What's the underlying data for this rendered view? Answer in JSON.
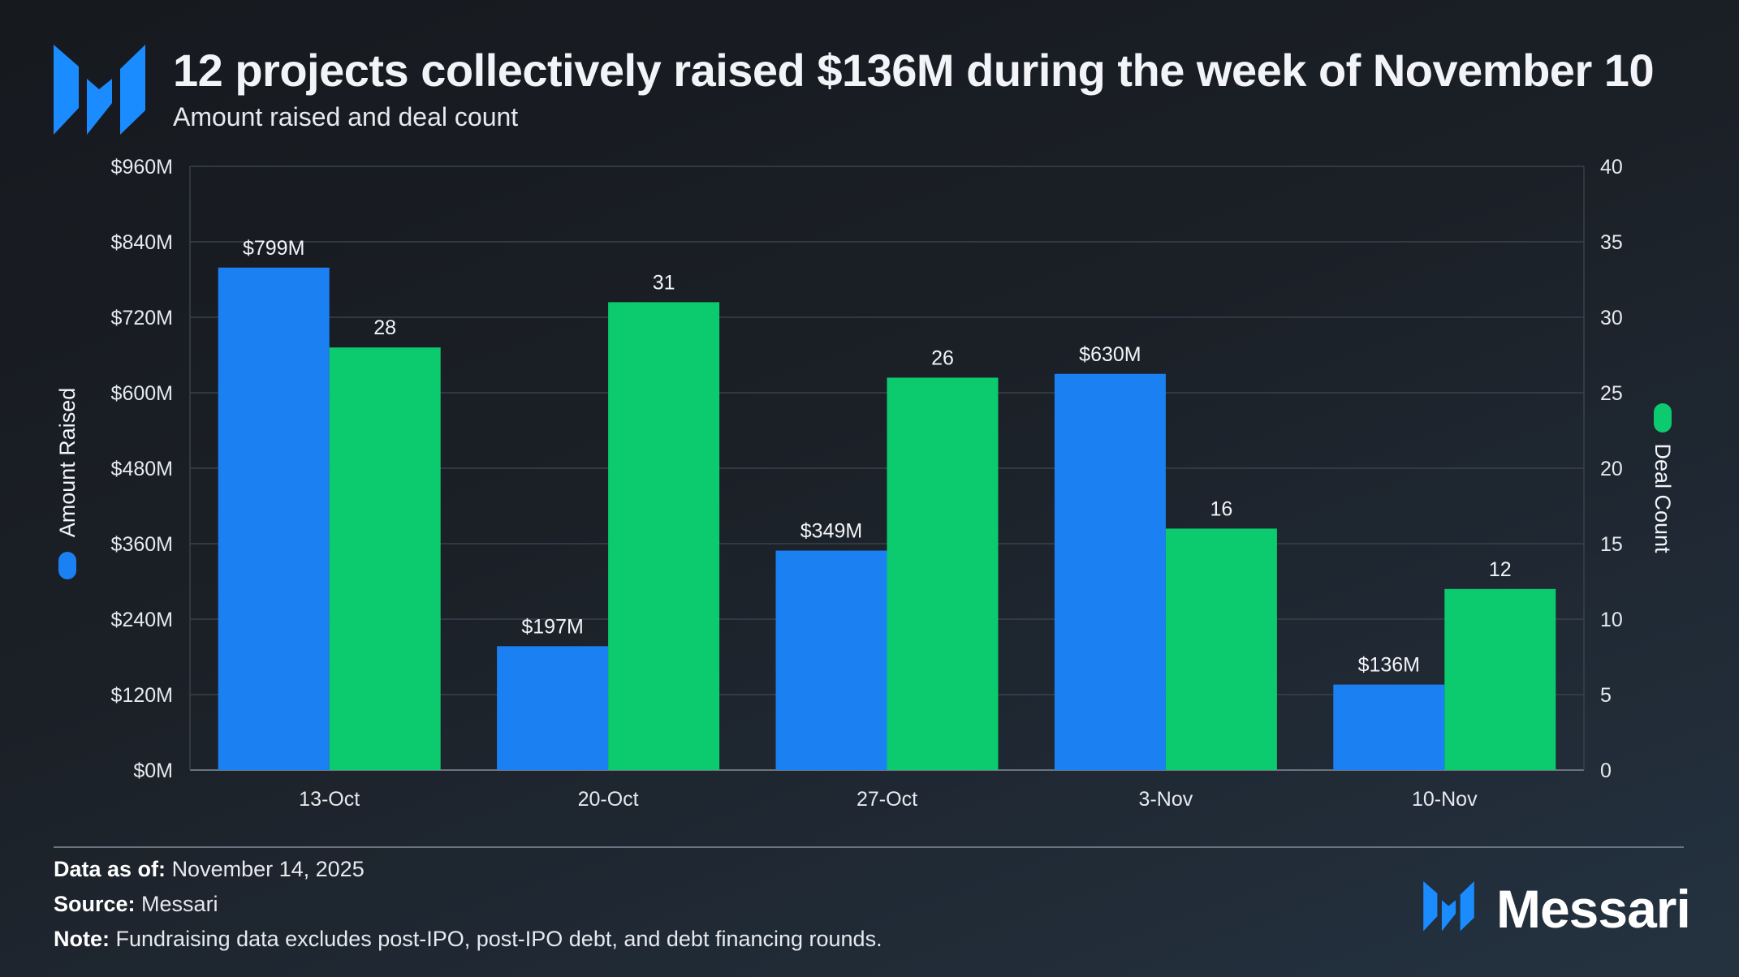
{
  "header": {
    "title": "12 projects collectively raised $136M during the week of November 10",
    "subtitle": "Amount raised and deal count",
    "logo": "messari-logo"
  },
  "chart_data": {
    "type": "bar",
    "title": "12 projects collectively raised $136M during the week of November 10",
    "subtitle": "Amount raised and deal count",
    "categories": [
      "13-Oct",
      "20-Oct",
      "27-Oct",
      "3-Nov",
      "10-Nov"
    ],
    "series": [
      {
        "name": "Amount Raised",
        "axis": "left",
        "values": [
          799,
          197,
          349,
          630,
          136
        ],
        "labels": [
          "$799M",
          "$197M",
          "$349M",
          "$630M",
          "$136M"
        ],
        "color": "#1b80f2"
      },
      {
        "name": "Deal Count",
        "axis": "right",
        "values": [
          28,
          31,
          26,
          16,
          12
        ],
        "labels": [
          "28",
          "31",
          "26",
          "16",
          "12"
        ],
        "color": "#0bcb6e"
      }
    ],
    "ylabel": "Amount Raised",
    "y2label": "Deal Count",
    "ylim": [
      0,
      960
    ],
    "y2lim": [
      0,
      40
    ],
    "yticks": [
      "$0M",
      "$120M",
      "$240M",
      "$360M",
      "$480M",
      "$600M",
      "$720M",
      "$840M",
      "$960M"
    ],
    "y2ticks": [
      "0",
      "5",
      "10",
      "15",
      "20",
      "25",
      "30",
      "35",
      "40"
    ],
    "grid": true,
    "legend": "axis-titles"
  },
  "footer": {
    "data_as_of_label": "Data as of:",
    "data_as_of_value": "November 14, 2025",
    "source_label": "Source:",
    "source_value": "Messari",
    "note_label": "Note:",
    "note_value": "Fundraising data excludes post-IPO, post-IPO debt, and debt financing rounds.",
    "brand": "Messari"
  },
  "colors": {
    "blue": "#1b80f2",
    "green": "#0bcb6e",
    "logo": "#1a8cff",
    "grid": "#3a414b"
  }
}
